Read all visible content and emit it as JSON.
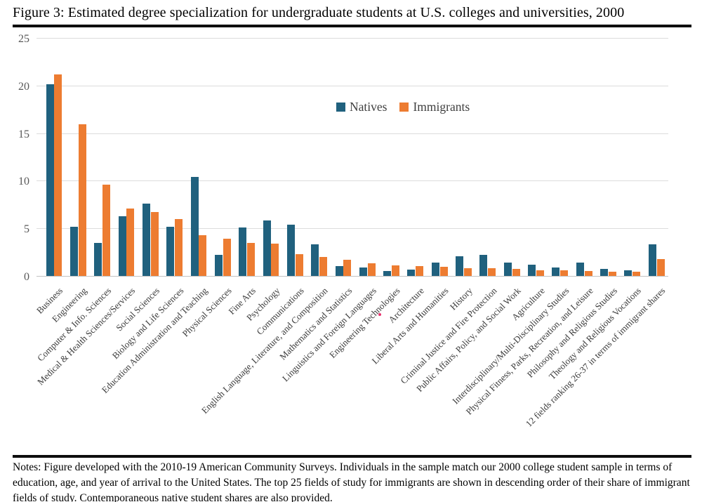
{
  "title": "Figure 3: Estimated degree specialization for undergraduate students at U.S. colleges and universities, 2000",
  "notes": "Notes: Figure developed with the 2010-19 American Community Surveys. Individuals in the sample match our 2000 college student sample in terms of education, age, and year of arrival to the United States. The top 25 fields of study for immigrants are shown in descending order of their share of immigrant fields of study. Contemporaneous native student shares are also provided.",
  "chart_data": {
    "type": "bar",
    "title": "Figure 3: Estimated degree specialization for undergraduate students at U.S. colleges and universities, 2000",
    "xlabel": "",
    "ylabel": "",
    "ylim": [
      0,
      25
    ],
    "yticks": [
      0,
      5,
      10,
      15,
      20,
      25
    ],
    "grid": true,
    "legend_position": "top-center-inside",
    "categories": [
      "Business",
      "Engineering",
      "Computer & Info. Sciences",
      "Medical & Health Sciences/Services",
      "Social Sciences",
      "Biology and Life Sciences",
      "Education Administration and Teaching",
      "Physical Sciences",
      "Fine Arts",
      "Psychology",
      "Communications",
      "English Language, Literature, and Composition",
      "Mathematics and Statistics",
      "Linguistics and Foreign Languages",
      "Engineering Technologies",
      "Architecture",
      "Liberal Arts and Humanities",
      "History",
      "Criminal Justice and Fire Protection",
      "Public Affairs, Policy, and Social Work",
      "Agriculture",
      "Interdisciplinary/Multi-Disciplinary Studies",
      "Physical Fitness, Parks, Recreation, and Leisure",
      "Philosophy and Religious Studies",
      "Theology and Religious Vocations",
      "12 fields ranking 26-37 in terms of immigrant shares"
    ],
    "series": [
      {
        "name": "Natives",
        "color": "#20617E",
        "values": [
          20.1,
          5.2,
          3.5,
          6.3,
          7.6,
          5.2,
          10.4,
          2.2,
          5.1,
          5.8,
          5.4,
          3.3,
          1.0,
          0.9,
          0.5,
          0.65,
          1.4,
          2.1,
          2.2,
          1.4,
          1.2,
          0.9,
          1.4,
          0.75,
          0.6,
          3.35
        ]
      },
      {
        "name": "Immigrants",
        "color": "#ED7C31",
        "values": [
          21.2,
          15.9,
          9.6,
          7.1,
          6.7,
          6.0,
          4.3,
          3.9,
          3.5,
          3.4,
          2.3,
          2.0,
          1.7,
          1.3,
          1.1,
          1.0,
          0.95,
          0.85,
          0.8,
          0.75,
          0.6,
          0.6,
          0.5,
          0.45,
          0.45,
          1.8
        ]
      }
    ]
  },
  "annotations": {
    "stray_dot_color": "#E8336E"
  },
  "colors": {
    "natives": "#20617E",
    "immigrants": "#ED7C31",
    "gridline": "#DCDCDC",
    "axis_line": "#C3C3C3",
    "ytick_text": "#595959",
    "xlabel_text": "#3A3A3A",
    "rule": "#0D0D0D"
  }
}
